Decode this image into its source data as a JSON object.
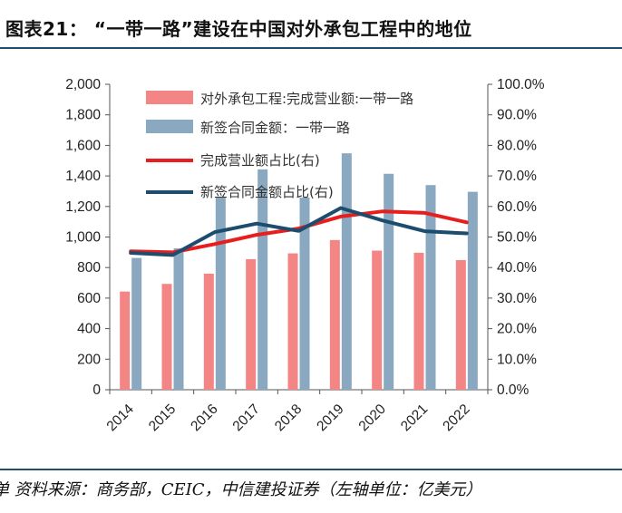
{
  "header": {
    "title": "图表21：  “一带一路”建设在中国对外承包工程中的地位"
  },
  "footer": {
    "source": "单   资料来源：商务部，CEIC，中信建投证券（左轴单位：亿美元）"
  },
  "colors": {
    "bar_revenue": "#f48585",
    "bar_contract": "#8aa9c0",
    "line_revenue_share": "#e81e1e",
    "line_contract_share": "#1d4d6e",
    "rule": "#1f4e6e"
  },
  "chart_data": {
    "type": "bar+line",
    "title": "“一带一路”建设在中国对外承包工程中的地位",
    "categories": [
      "2014",
      "2015",
      "2016",
      "2017",
      "2018",
      "2019",
      "2020",
      "2021",
      "2022"
    ],
    "series": [
      {
        "name": "对外承包工程:完成营业额:一带一路",
        "type": "bar",
        "axis": "left",
        "values": [
          643,
          693,
          760,
          855,
          893,
          980,
          911,
          897,
          849
        ]
      },
      {
        "name": "新签合同金额：一带一路",
        "type": "bar",
        "axis": "left",
        "values": [
          863,
          926,
          1260,
          1443,
          1258,
          1548,
          1414,
          1340,
          1296
        ]
      },
      {
        "name": "完成营业额占比(右)",
        "type": "line",
        "axis": "right",
        "values": [
          45.3,
          45.0,
          47.7,
          50.7,
          52.8,
          56.7,
          58.4,
          57.9,
          54.8
        ]
      },
      {
        "name": "新签合同金额占比(右)",
        "type": "line",
        "axis": "right",
        "values": [
          44.8,
          44.1,
          51.6,
          54.4,
          52.0,
          59.5,
          55.4,
          51.9,
          51.2
        ]
      }
    ],
    "left_axis": {
      "min": 0,
      "max": 2000,
      "step": 200,
      "tick_labels": [
        "0",
        "200",
        "400",
        "600",
        "800",
        "1,000",
        "1,200",
        "1,400",
        "1,600",
        "1,800",
        "2,000"
      ]
    },
    "right_axis": {
      "min": 0,
      "max": 100,
      "step": 10,
      "tick_labels": [
        "0.0%",
        "10.0%",
        "20.0%",
        "30.0%",
        "40.0%",
        "50.0%",
        "60.0%",
        "70.0%",
        "80.0%",
        "90.0%",
        "100.0%"
      ]
    },
    "legend_position": "top-left inside plot",
    "grid": false
  }
}
